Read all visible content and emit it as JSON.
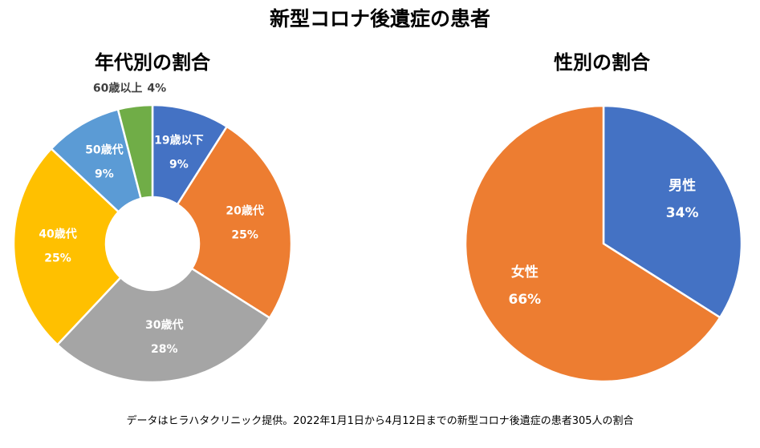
{
  "title": "新型コロナ後遺症の患者",
  "footer": "データはヒラハタクリニック提供。2022年1月1日から4月12日までの新型コロナ後遺症の患者305人の割合",
  "chart_data": [
    {
      "type": "donut",
      "title": "年代別の割合",
      "slices": [
        {
          "label": "19歳以下",
          "value": 9,
          "pct": "9%",
          "color": "#4472C4"
        },
        {
          "label": "20歳代",
          "value": 25,
          "pct": "25%",
          "color": "#ED7D31"
        },
        {
          "label": "30歳代",
          "value": 28,
          "pct": "28%",
          "color": "#A5A5A5"
        },
        {
          "label": "40歳代",
          "value": 25,
          "pct": "25%",
          "color": "#FFC000"
        },
        {
          "label": "50歳代",
          "value": 9,
          "pct": "9%",
          "color": "#5B9BD5"
        },
        {
          "label": "60歳以上",
          "value": 4,
          "pct": "4%",
          "color": "#70AD47"
        }
      ]
    },
    {
      "type": "pie",
      "title": "性別の割合",
      "slices": [
        {
          "label": "男性",
          "value": 34,
          "pct": "34%",
          "color": "#4472C4"
        },
        {
          "label": "女性",
          "value": 66,
          "pct": "66%",
          "color": "#ED7D31"
        }
      ]
    }
  ]
}
